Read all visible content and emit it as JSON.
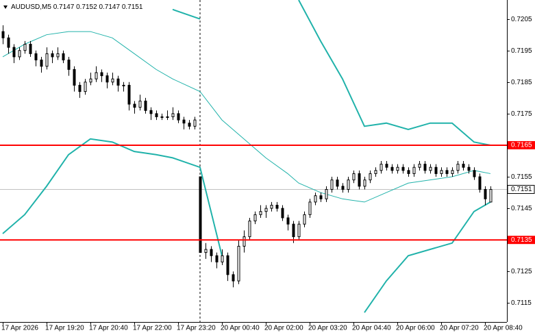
{
  "chart_data": {
    "type": "candlestick",
    "symbol": "AUDUSD,M5",
    "last_ohlc": [
      0.7147,
      0.7152,
      0.7147,
      0.7151
    ],
    "ylim": [
      0.7109,
      0.7211
    ],
    "yticks": [
      0.7205,
      0.7195,
      0.7185,
      0.7175,
      0.7155,
      0.7145,
      0.7125,
      0.7115
    ],
    "levels": [
      0.7165,
      0.7135
    ],
    "level_color": "#ff0000",
    "current_price": 0.7151,
    "up_color": "#ffffff",
    "down_color": "#000000",
    "x_labels": [
      "17 Apr 2026",
      "17 Apr 19:20",
      "17 Apr 20:40",
      "17 Apr 22:00",
      "17 Apr 23:20",
      "20 Apr 00:40",
      "20 Apr 02:00",
      "20 Apr 03:20",
      "20 Apr 04:40",
      "20 Apr 06:00",
      "20 Apr 07:20",
      "20 Apr 08:40"
    ],
    "candles": [
      [
        0.7201,
        0.7203,
        0.7197,
        0.7199
      ],
      [
        0.7199,
        0.72,
        0.7194,
        0.7196
      ],
      [
        0.7196,
        0.7197,
        0.7191,
        0.7193
      ],
      [
        0.7193,
        0.7196,
        0.7192,
        0.7195
      ],
      [
        0.7195,
        0.7198,
        0.7194,
        0.7197
      ],
      [
        0.7197,
        0.7198,
        0.7193,
        0.7194
      ],
      [
        0.7194,
        0.7195,
        0.719,
        0.7192
      ],
      [
        0.7192,
        0.7193,
        0.7188,
        0.719
      ],
      [
        0.719,
        0.7196,
        0.7189,
        0.7194
      ],
      [
        0.7194,
        0.7195,
        0.7191,
        0.7193
      ],
      [
        0.7193,
        0.7196,
        0.7192,
        0.7194
      ],
      [
        0.7194,
        0.7195,
        0.7191,
        0.7192
      ],
      [
        0.7192,
        0.7193,
        0.7187,
        0.7189
      ],
      [
        0.7189,
        0.719,
        0.7182,
        0.7184
      ],
      [
        0.7184,
        0.7185,
        0.718,
        0.7182
      ],
      [
        0.7182,
        0.7186,
        0.7181,
        0.7185
      ],
      [
        0.7185,
        0.7188,
        0.7184,
        0.7186
      ],
      [
        0.7186,
        0.719,
        0.7185,
        0.7188
      ],
      [
        0.7188,
        0.7189,
        0.7185,
        0.7187
      ],
      [
        0.7187,
        0.7188,
        0.7183,
        0.7185
      ],
      [
        0.7185,
        0.7188,
        0.7184,
        0.7186
      ],
      [
        0.7186,
        0.7187,
        0.7182,
        0.7184
      ],
      [
        0.7184,
        0.7185,
        0.7182,
        0.7184
      ],
      [
        0.7184,
        0.7185,
        0.7176,
        0.7178
      ],
      [
        0.7178,
        0.7179,
        0.7175,
        0.7177
      ],
      [
        0.7177,
        0.7181,
        0.7176,
        0.7179
      ],
      [
        0.7179,
        0.718,
        0.7175,
        0.7176
      ],
      [
        0.7176,
        0.7177,
        0.7173,
        0.7175
      ],
      [
        0.7175,
        0.7176,
        0.7173,
        0.7174
      ],
      [
        0.7174,
        0.7175,
        0.7173,
        0.7174
      ],
      [
        0.7174,
        0.7176,
        0.7173,
        0.7174
      ],
      [
        0.7174,
        0.7177,
        0.7173,
        0.7175
      ],
      [
        0.7175,
        0.7176,
        0.7172,
        0.7173
      ],
      [
        0.7173,
        0.7174,
        0.717,
        0.7172
      ],
      [
        0.7172,
        0.7173,
        0.717,
        0.7171
      ],
      [
        0.7171,
        0.7174,
        0.717,
        0.7173
      ],
      [
        0.7155,
        0.7155,
        0.7131,
        0.7131
      ],
      [
        0.7131,
        0.7134,
        0.7129,
        0.7132
      ],
      [
        0.7132,
        0.7133,
        0.7128,
        0.713
      ],
      [
        0.713,
        0.7131,
        0.7126,
        0.7128
      ],
      [
        0.7128,
        0.7132,
        0.7127,
        0.713
      ],
      [
        0.713,
        0.7131,
        0.7122,
        0.7124
      ],
      [
        0.7124,
        0.7125,
        0.712,
        0.7122
      ],
      [
        0.7122,
        0.7135,
        0.7121,
        0.7133
      ],
      [
        0.7133,
        0.7138,
        0.7131,
        0.7136
      ],
      [
        0.7136,
        0.7142,
        0.7135,
        0.7141
      ],
      [
        0.7141,
        0.7144,
        0.714,
        0.7143
      ],
      [
        0.7143,
        0.7146,
        0.7142,
        0.7144
      ],
      [
        0.7144,
        0.7146,
        0.7142,
        0.7145
      ],
      [
        0.7145,
        0.7147,
        0.7144,
        0.7146
      ],
      [
        0.7146,
        0.7147,
        0.7144,
        0.7145
      ],
      [
        0.7145,
        0.7146,
        0.7141,
        0.7142
      ],
      [
        0.7142,
        0.7143,
        0.7138,
        0.714
      ],
      [
        0.714,
        0.7141,
        0.7134,
        0.7136
      ],
      [
        0.7136,
        0.7141,
        0.7135,
        0.714
      ],
      [
        0.714,
        0.7144,
        0.7139,
        0.7143
      ],
      [
        0.7143,
        0.7148,
        0.7142,
        0.7147
      ],
      [
        0.7147,
        0.715,
        0.7146,
        0.7149
      ],
      [
        0.7149,
        0.715,
        0.7147,
        0.7148
      ],
      [
        0.7148,
        0.7152,
        0.7147,
        0.7151
      ],
      [
        0.7151,
        0.7155,
        0.715,
        0.7154
      ],
      [
        0.7154,
        0.7155,
        0.7151,
        0.7152
      ],
      [
        0.7152,
        0.7153,
        0.715,
        0.7151
      ],
      [
        0.7151,
        0.7155,
        0.715,
        0.7154
      ],
      [
        0.7154,
        0.7157,
        0.7153,
        0.7156
      ],
      [
        0.7156,
        0.7157,
        0.7151,
        0.7152
      ],
      [
        0.7152,
        0.7155,
        0.7151,
        0.7154
      ],
      [
        0.7154,
        0.7157,
        0.7153,
        0.7156
      ],
      [
        0.7156,
        0.7158,
        0.7155,
        0.7157
      ],
      [
        0.7157,
        0.716,
        0.7156,
        0.7159
      ],
      [
        0.7159,
        0.716,
        0.7157,
        0.7158
      ],
      [
        0.7158,
        0.7159,
        0.7156,
        0.7157
      ],
      [
        0.7157,
        0.7159,
        0.7156,
        0.7158
      ],
      [
        0.7158,
        0.7159,
        0.7156,
        0.7157
      ],
      [
        0.7157,
        0.7158,
        0.7155,
        0.7156
      ],
      [
        0.7156,
        0.7159,
        0.7155,
        0.7158
      ],
      [
        0.7158,
        0.716,
        0.7157,
        0.7159
      ],
      [
        0.7159,
        0.716,
        0.7156,
        0.7157
      ],
      [
        0.7157,
        0.7159,
        0.7156,
        0.7158
      ],
      [
        0.7158,
        0.7159,
        0.7155,
        0.7156
      ],
      [
        0.7156,
        0.7158,
        0.7155,
        0.7157
      ],
      [
        0.7157,
        0.7158,
        0.7155,
        0.7156
      ],
      [
        0.7156,
        0.7158,
        0.7155,
        0.7157
      ],
      [
        0.7157,
        0.716,
        0.7156,
        0.7159
      ],
      [
        0.7159,
        0.716,
        0.7157,
        0.7158
      ],
      [
        0.7158,
        0.7159,
        0.7156,
        0.7157
      ],
      [
        0.7157,
        0.7158,
        0.7154,
        0.7155
      ],
      [
        0.7155,
        0.7156,
        0.715,
        0.7151
      ],
      [
        0.7151,
        0.7152,
        0.7146,
        0.7148
      ],
      [
        0.7147,
        0.7152,
        0.7147,
        0.7151
      ]
    ],
    "bands": {
      "color": "#20b2aa",
      "x": [
        0,
        4,
        8,
        12,
        16,
        20,
        24,
        28,
        31,
        36,
        40,
        44,
        48,
        52,
        54,
        58,
        62,
        66,
        70,
        74,
        78,
        82,
        86,
        89
      ],
      "upper": [
        null,
        null,
        null,
        null,
        null,
        null,
        null,
        null,
        0.7208,
        0.7205,
        null,
        null,
        null,
        null,
        0.7211,
        0.7198,
        0.7186,
        0.7171,
        0.7172,
        0.717,
        0.7172,
        0.7172,
        0.7166,
        0.7165
      ],
      "middle": [
        0.7193,
        0.7197,
        0.72,
        0.7201,
        0.7201,
        0.7199,
        0.7194,
        0.7189,
        0.7186,
        0.7182,
        0.7173,
        0.7167,
        0.7161,
        0.7156,
        0.7153,
        0.715,
        0.7148,
        0.7147,
        0.715,
        0.7153,
        0.7154,
        0.7155,
        0.7157,
        0.7156
      ],
      "lower": [
        0.7137,
        0.7143,
        0.7152,
        0.7162,
        0.7167,
        0.7166,
        0.7163,
        0.7162,
        0.7161,
        0.7158,
        0.713,
        null,
        null,
        null,
        null,
        null,
        null,
        0.7112,
        0.7122,
        0.713,
        0.7132,
        0.7134,
        0.7144,
        0.7147
      ]
    }
  }
}
